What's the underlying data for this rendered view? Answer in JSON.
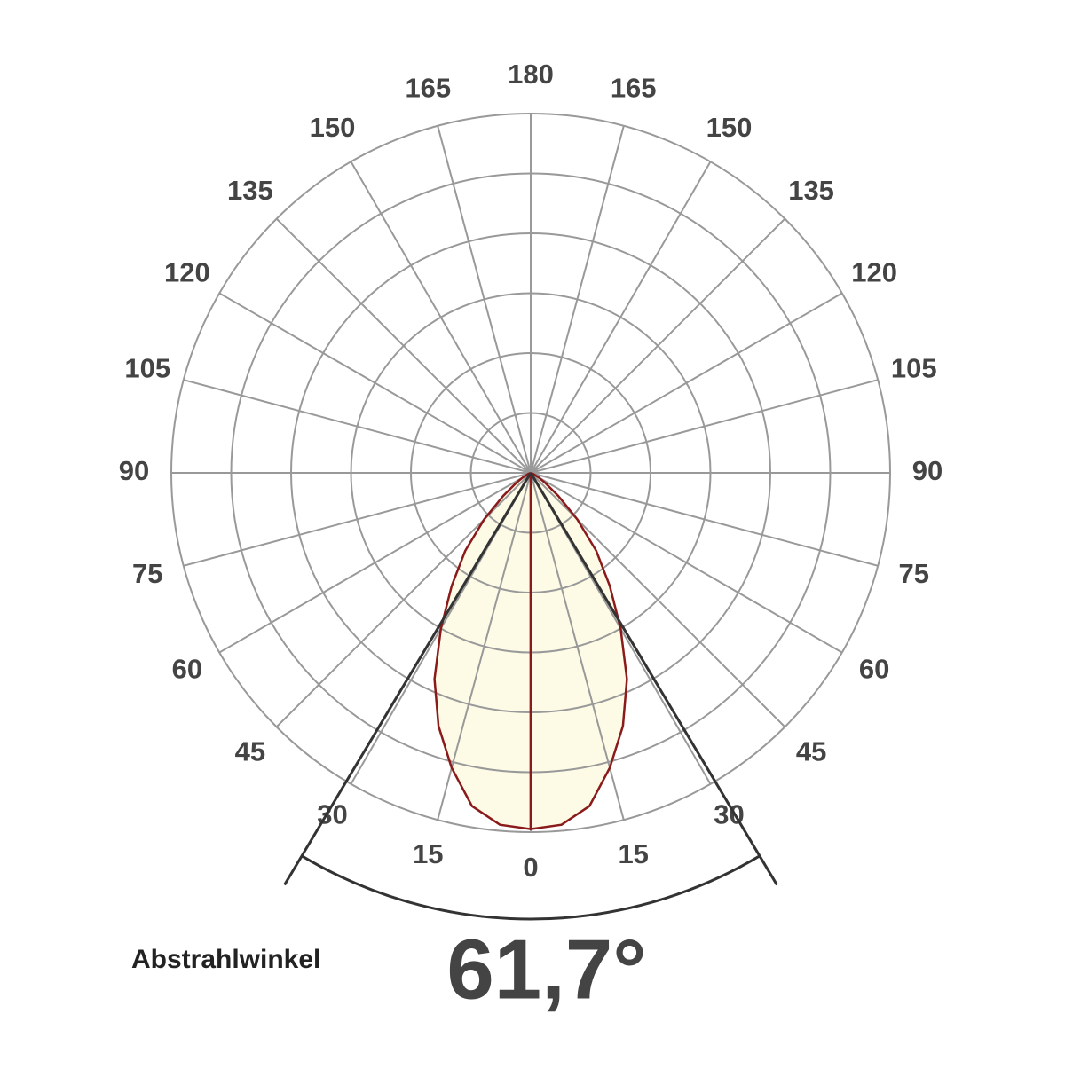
{
  "chart_data": {
    "type": "polar",
    "angle_ticks": [
      0,
      15,
      30,
      45,
      60,
      75,
      90,
      105,
      120,
      135,
      150,
      165,
      180
    ],
    "rlim": [
      0,
      120
    ],
    "rticks": [
      20,
      40,
      60,
      80,
      100,
      120
    ],
    "angles": [
      0,
      5,
      10,
      15,
      20,
      25,
      30,
      35,
      40,
      45,
      50,
      55,
      60,
      65,
      70,
      90
    ],
    "values": [
      119,
      118,
      113,
      102,
      90,
      76,
      60,
      46,
      34,
      22,
      12,
      6,
      3,
      1,
      0,
      0
    ],
    "color": "#8b1a1a",
    "fill": "#fdfbe6",
    "beam": {
      "label": "Abstrahlwinkel",
      "value": 61.7,
      "value_label": "61,7°"
    }
  }
}
